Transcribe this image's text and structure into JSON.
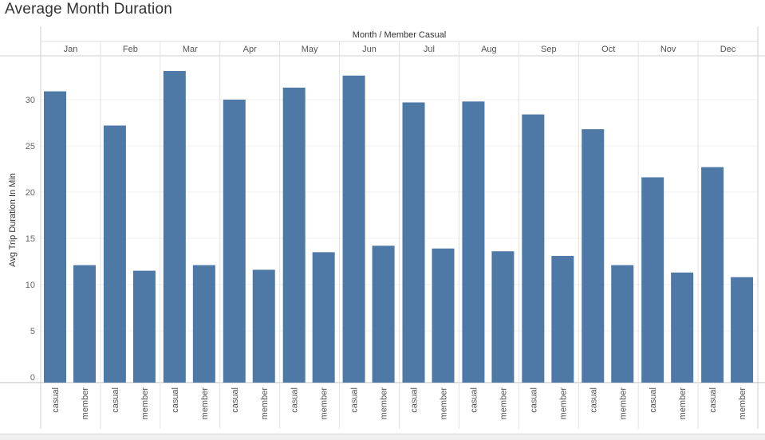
{
  "title": "Average Month Duration",
  "chart_data": {
    "type": "bar",
    "title": "Average Month Duration",
    "header_label": "Month / Member Casual",
    "ylabel": "Avg Trip Duration In Min",
    "xlabel": "",
    "ylim": [
      0,
      34
    ],
    "yticks": [
      0,
      5,
      10,
      15,
      20,
      25,
      30
    ],
    "grid": true,
    "bar_color": "#4e79a7",
    "groups": [
      "Jan",
      "Feb",
      "Mar",
      "Apr",
      "May",
      "Jun",
      "Jul",
      "Aug",
      "Sep",
      "Oct",
      "Nov",
      "Dec"
    ],
    "subcategories": [
      "casual",
      "member"
    ],
    "series": [
      {
        "name": "casual",
        "values": [
          30.9,
          27.2,
          33.1,
          30.0,
          31.3,
          32.6,
          29.7,
          29.8,
          28.4,
          26.8,
          21.6,
          22.7
        ]
      },
      {
        "name": "member",
        "values": [
          12.1,
          11.5,
          12.1,
          11.6,
          13.5,
          14.2,
          13.9,
          13.6,
          13.1,
          12.1,
          11.3,
          10.8
        ]
      }
    ]
  }
}
